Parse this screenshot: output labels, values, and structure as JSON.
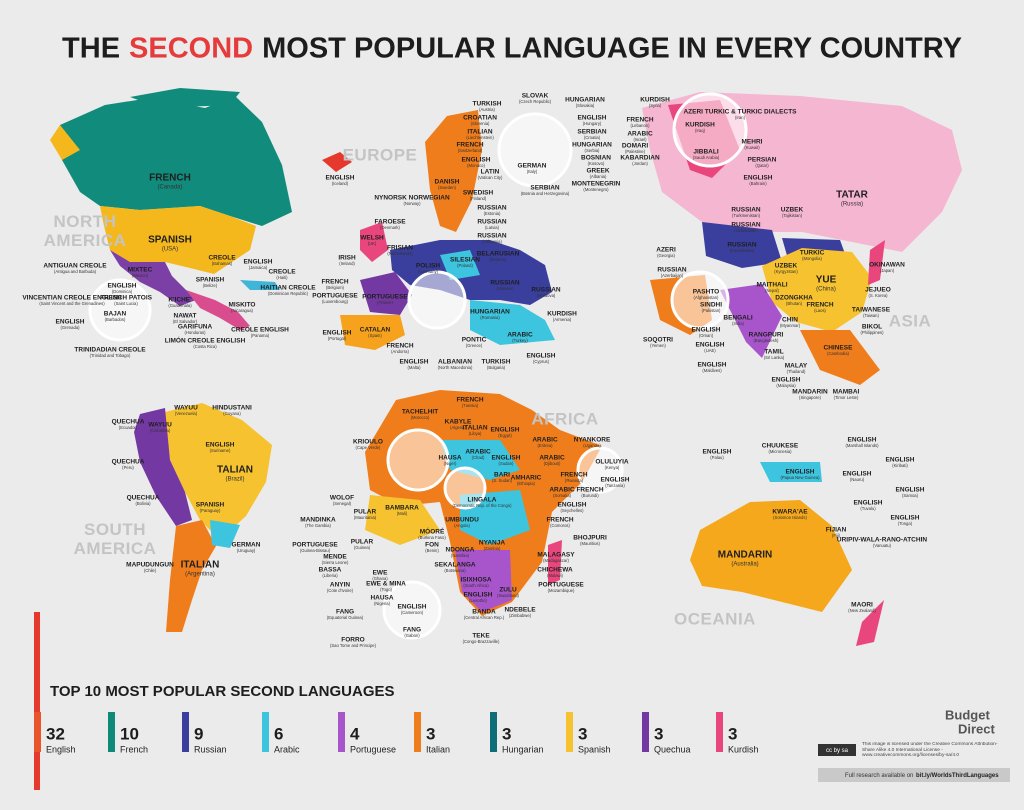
{
  "header": {
    "title_start": "THE",
    "title_highlight": "SECOND",
    "title_end": "MOST POPULAR LANGUAGE IN EVERY COUNTRY"
  },
  "region_names": [
    "NORTH AMERICA",
    "SOUTH AMERICA",
    "EUROPE",
    "AFRICA",
    "ASIA",
    "OCEANIA"
  ],
  "labels": [
    [
      "FRENCH",
      "(Canada)"
    ],
    [
      "SPANISH",
      "(USA)"
    ],
    [
      "MIXTEC",
      "(Mexico)"
    ],
    [
      "CREOLE",
      "(Bahamas)"
    ],
    [
      "SPANISH",
      "(Belize)"
    ],
    [
      "ENGLISH",
      "(Jamaica)"
    ],
    [
      "CREOLE",
      "(Haiti)"
    ],
    [
      "HAITIAN CREOLE",
      "(Dominican Republic)"
    ],
    [
      "K'ICHE'",
      "(Guatemala)"
    ],
    [
      "NAWAT",
      "(El Salvador)"
    ],
    [
      "MISKITO",
      "(Nicaragua)"
    ],
    [
      "GARIFUNA",
      "(Honduras)"
    ],
    [
      "LIMÓN CREOLE ENGLISH",
      "(Costa Rica)"
    ],
    [
      "CREOLE ENGLISH",
      "(Panama)"
    ],
    [
      "ANTIGUAN CREOLE",
      "(Antigua and Barbuda)"
    ],
    [
      "ENGLISH",
      "(Dominica)"
    ],
    [
      "FRENCH PATOIS",
      "(Saint Lucia)"
    ],
    [
      "VINCENTIAN CREOLE ENGLISH",
      "(Saint Vincent and the Grenadines)"
    ],
    [
      "BAJAN",
      "(Barbados)"
    ],
    [
      "ENGLISH",
      "(Grenada)"
    ],
    [
      "TRINIDADIAN CREOLE",
      "(Trinidad and Tobago)"
    ],
    [
      "ENGLISH",
      "(Iceland)"
    ],
    [
      "TURKISH",
      "(Austria)"
    ],
    [
      "SLOVAK",
      "(Czech Republic)"
    ],
    [
      "HUNGARIAN",
      "(Slovakia)"
    ],
    [
      "CROATIAN",
      "(Slovenia)"
    ],
    [
      "ITALIAN",
      "(Liechtenstein)"
    ],
    [
      "FRENCH",
      "(Switzerland)"
    ],
    [
      "ENGLISH",
      "(Monaco)"
    ],
    [
      "LATIN",
      "(Vatican City)"
    ],
    [
      "GERMAN",
      "(Italy)"
    ],
    [
      "ENGLISH",
      "(Hungary)"
    ],
    [
      "SERBIAN",
      "(Croatia)"
    ],
    [
      "HUNGARIAN",
      "(Serbia)"
    ],
    [
      "BOSNIAN",
      "(Kosovo)"
    ],
    [
      "GREEK",
      "(Albania)"
    ],
    [
      "MONTENEGRIN",
      "(Montenegro)"
    ],
    [
      "SERBIAN",
      "(Bosnia and Herzegovina)"
    ],
    [
      "DANISH",
      "(Sweden)"
    ],
    [
      "SWEDISH",
      "(Finland)"
    ],
    [
      "NYNORSK NORWEGIAN",
      "(Norway)"
    ],
    [
      "RUSSIAN",
      "(Estonia)"
    ],
    [
      "RUSSIAN",
      "(Latvia)"
    ],
    [
      "RUSSIAN",
      "(Lithuania)"
    ],
    [
      "FAROESE",
      "(Denmark)"
    ],
    [
      "WELSH",
      "(UK)"
    ],
    [
      "FRISIAN",
      "(Netherlands)"
    ],
    [
      "IRISH",
      "(Ireland)"
    ],
    [
      "POLISH",
      "(Germany)"
    ],
    [
      "SILESIAN",
      "(Poland)"
    ],
    [
      "BELARUSIAN",
      "(Belarus)"
    ],
    [
      "RUSSIAN",
      "(Ukraine)"
    ],
    [
      "RUSSIAN",
      "(Moldova)"
    ],
    [
      "FRENCH",
      "(Belgium)"
    ],
    [
      "PORTUGUESE",
      "(Luxembourg)"
    ],
    [
      "PORTUGUESE",
      "(France)"
    ],
    [
      "CATALAN",
      "(Spain)"
    ],
    [
      "ENGLISH",
      "(Portugal)"
    ],
    [
      "FRENCH",
      "(Andorra)"
    ],
    [
      "HUNGARIAN",
      "(Romania)"
    ],
    [
      "PONTIC",
      "(Greece)"
    ],
    [
      "ARABIC",
      "(Turkey)"
    ],
    [
      "KURDISH",
      "(Armenia)"
    ],
    [
      "ENGLISH",
      "(Malta)"
    ],
    [
      "ALBANIAN",
      "(North Macedonia)"
    ],
    [
      "TURKISH",
      "(Bulgaria)"
    ],
    [
      "ENGLISH",
      "(Cyprus)"
    ],
    [
      "KURDISH",
      "(Syria)"
    ],
    [
      "AZERI TURKIC & TURKIC DIALECTS",
      "(Iran)"
    ],
    [
      "FRENCH",
      "(Lebanon)"
    ],
    [
      "ARABIC",
      "(Israel)"
    ],
    [
      "DOMARI",
      "(Palestine)"
    ],
    [
      "KABARDIAN",
      "(Jordan)"
    ],
    [
      "KURDISH",
      "(Iraq)"
    ],
    [
      "JIBBALI",
      "(Saudi Arabia)"
    ],
    [
      "MEHRI",
      "(Kuwait)"
    ],
    [
      "PERSIAN",
      "(Qatar)"
    ],
    [
      "ENGLISH",
      "(Bahrain)"
    ],
    [
      "TATAR",
      "(Russia)"
    ],
    [
      "RUSSIAN",
      "(Turkmenistan)"
    ],
    [
      "RUSSIAN",
      "(Uzbekistan)"
    ],
    [
      "UZBEK",
      "(Tajikistan)"
    ],
    [
      "AZERI",
      "(Georgia)"
    ],
    [
      "RUSSIAN",
      "(Kazakhstan)"
    ],
    [
      "TURKIC",
      "(Mongolia)"
    ],
    [
      "UZBEK",
      "(Kyrgyzstan)"
    ],
    [
      "RUSSIAN",
      "(Azerbaijan)"
    ],
    [
      "YUE",
      "(China)"
    ],
    [
      "OKINAWAN",
      "(Japan)"
    ],
    [
      "JEJUEO",
      "(S. Korea)"
    ],
    [
      "PASHTO",
      "(Afghanistan)"
    ],
    [
      "MAITHALI",
      "(Nepal)"
    ],
    [
      "DZONGKHA",
      "(Bhutan)"
    ],
    [
      "SINDHI",
      "(Pakistan)"
    ],
    [
      "BENGALI",
      "(India)"
    ],
    [
      "FRENCH",
      "(Laos)"
    ],
    [
      "CHIN",
      "(Myanmar)"
    ],
    [
      "TAIWANESE",
      "(Taiwan)"
    ],
    [
      "BIKOL",
      "(Philippines)"
    ],
    [
      "ENGLISH",
      "(Oman)"
    ],
    [
      "SOQOTRI",
      "(Yemen)"
    ],
    [
      "ENGLISH",
      "(UAE)"
    ],
    [
      "RANGPURI",
      "(Bangladesh)"
    ],
    [
      "TAMIL",
      "(Sri Lanka)"
    ],
    [
      "CHINESE",
      "(Cambodia)"
    ],
    [
      "ENGLISH",
      "(Maldives)"
    ],
    [
      "MALAY",
      "(Thailand)"
    ],
    [
      "ENGLISH",
      "(Malaysia)"
    ],
    [
      "MANDARIN",
      "(Singapore)"
    ],
    [
      "MAMBAI",
      "(Timor Leste)"
    ],
    [
      "FRENCH",
      "(Tunisia)"
    ],
    [
      "TACHELHIT",
      "(Morocco)"
    ],
    [
      "KABYLE",
      "(Algeria)"
    ],
    [
      "ITALIAN",
      "(Libya)"
    ],
    [
      "ENGLISH",
      "(Egypt)"
    ],
    [
      "KRIOULO",
      "(Cape Verde)"
    ],
    [
      "ARABIC",
      "(Chad)"
    ],
    [
      "HAUSA",
      "(Niger)"
    ],
    [
      "ENGLISH",
      "(Sudan)"
    ],
    [
      "ARABIC",
      "(Eritrea)"
    ],
    [
      "ARABIC",
      "(Djibouti)"
    ],
    [
      "NYANKORE",
      "(Uganda)"
    ],
    [
      "OLULUYIA",
      "(Kenya)"
    ],
    [
      "BARI",
      "(S. Sudan)"
    ],
    [
      "AMHARIC",
      "(Ethiopia)"
    ],
    [
      "FRENCH",
      "(Rwanda)"
    ],
    [
      "ENGLISH",
      "(Tanzania)"
    ],
    [
      "ARABIC",
      "(Somalia)"
    ],
    [
      "FRENCH",
      "(Burundi)"
    ],
    [
      "WOLOF",
      "(Senegal)"
    ],
    [
      "PULAR",
      "(Mauritania)"
    ],
    [
      "BAMBARA",
      "(Mali)"
    ],
    [
      "LINGALA",
      "(Democratic Rep. of the Congo)"
    ],
    [
      "ENGLISH",
      "(Seychelles)"
    ],
    [
      "MANDINKA",
      "(The Gambia)"
    ],
    [
      "UMBUNDU",
      "(Angola)"
    ],
    [
      "FRENCH",
      "(Comoros)"
    ],
    [
      "BHOJPURI",
      "(Mauritius)"
    ],
    [
      "PORTUGUESE",
      "(Guinea-Bissau)"
    ],
    [
      "PULAR",
      "(Guinea)"
    ],
    [
      "MÓORÉ",
      "(Burkina Faso)"
    ],
    [
      "FON",
      "(Benin)"
    ],
    [
      "MENDE",
      "(Sierra Leone)"
    ],
    [
      "NDONGA",
      "(Namibia)"
    ],
    [
      "NYANJA",
      "(Zambia)"
    ],
    [
      "MALAGASY",
      "(Madagascar)"
    ],
    [
      "BASSA",
      "(Liberia)"
    ],
    [
      "EWE",
      "(Ghana)"
    ],
    [
      "SEKALANGA",
      "(Botswana)"
    ],
    [
      "ISIXHOSA",
      "(South Africa)"
    ],
    [
      "CHICHEWA",
      "(Malawi)"
    ],
    [
      "ANYIN",
      "(Cote d'Ivoire)"
    ],
    [
      "EWE & MINA",
      "(Togo)"
    ],
    [
      "PORTUGUESE",
      "(Mozambique)"
    ],
    [
      "ZULU",
      "(Swaziland)"
    ],
    [
      "HAUSA",
      "(Nigeria)"
    ],
    [
      "ENGLISH",
      "(Cameroon)"
    ],
    [
      "ENGLISH",
      "(Lesotho)"
    ],
    [
      "NDEBELE",
      "(Zimbabwe)"
    ],
    [
      "FANG",
      "(Equatorial Guinea)"
    ],
    [
      "BANDA",
      "(Central African Rep.)"
    ],
    [
      "FANG",
      "(Gabon)"
    ],
    [
      "FORRO",
      "(Sao Tome and Principe)"
    ],
    [
      "TEKE",
      "(Congo-Brazzaville)"
    ],
    [
      "WAYUU",
      "(Venezuela)"
    ],
    [
      "HINDUSTANI",
      "(Guyana)"
    ],
    [
      "QUECHUA",
      "(Ecuador)"
    ],
    [
      "WAYUU",
      "(Colombia)"
    ],
    [
      "ENGLISH",
      "(Suriname)"
    ],
    [
      "QUECHUA",
      "(Peru)"
    ],
    [
      "TALIAN",
      "(Brazil)"
    ],
    [
      "QUECHUA",
      "(Bolivia)"
    ],
    [
      "SPANISH",
      "(Paraguay)"
    ],
    [
      "GERMAN",
      "(Uruguay)"
    ],
    [
      "MAPUDUNGUN",
      "(Chile)"
    ],
    [
      "ITALIAN",
      "(Argentina)"
    ],
    [
      "ENGLISH",
      "(Palau)"
    ],
    [
      "CHUUKESE",
      "(Micronesia)"
    ],
    [
      "ENGLISH",
      "(Marshall Islands)"
    ],
    [
      "ENGLISH",
      "(Kiribati)"
    ],
    [
      "ENGLISH",
      "(Papua New Guinea)"
    ],
    [
      "ENGLISH",
      "(Nauru)"
    ],
    [
      "ENGLISH",
      "(Samoa)"
    ],
    [
      "ENGLISH",
      "(Tuvalu)"
    ],
    [
      "KWARA'AE",
      "(Solomon Islands)"
    ],
    [
      "ENGLISH",
      "(Tonga)"
    ],
    [
      "FIJIAN",
      "(Fiji)"
    ],
    [
      "URIPIV-WALA-RANO-ATCHIN",
      "(Vanuatu)"
    ],
    [
      "MANDARIN",
      "(Australia)"
    ],
    [
      "MAORI",
      "(New Zealand)"
    ]
  ],
  "top10": {
    "title": "TOP 10 MOST POPULAR SECOND LANGUAGES",
    "items": [
      {
        "count": 32,
        "name": "English",
        "color": "#e9542c"
      },
      {
        "count": 10,
        "name": "French",
        "color": "#0f8a78"
      },
      {
        "count": 9,
        "name": "Russian",
        "color": "#3a3f9e"
      },
      {
        "count": 6,
        "name": "Arabic",
        "color": "#3dc4de"
      },
      {
        "count": 4,
        "name": "Portuguese",
        "color": "#a855cc"
      },
      {
        "count": 3,
        "name": "Italian",
        "color": "#f07d1b"
      },
      {
        "count": 3,
        "name": "Hungarian",
        "color": "#0f6d78"
      },
      {
        "count": 3,
        "name": "Spanish",
        "color": "#f6c22f"
      },
      {
        "count": 3,
        "name": "Quechua",
        "color": "#7438a2"
      },
      {
        "count": 3,
        "name": "Kurdish",
        "color": "#e8467c"
      }
    ]
  },
  "footer": {
    "brand_top": "Budget",
    "brand_bottom": "Direct",
    "cc_badge": "cc by sa",
    "license": "This image is licensed under the Creative Commons Attribution-Share Alike 4.0 International License - www.creativecommons.org/licenses/by-sa/4.0",
    "research": "Full research available on",
    "link": "bit.ly/WorldsThirdLanguages"
  }
}
